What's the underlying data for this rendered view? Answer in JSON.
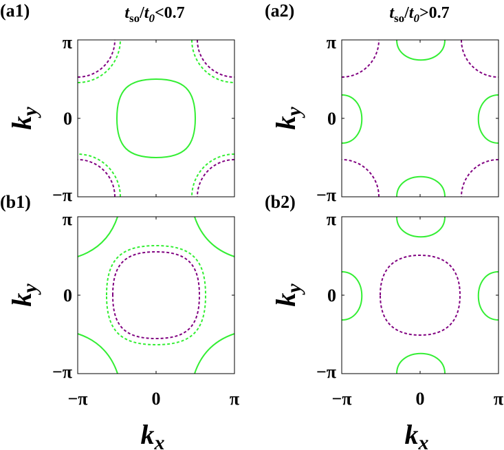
{
  "panels": [
    {
      "label": "(a1)"
    },
    {
      "label": "(a2)"
    },
    {
      "label": "(b1)"
    },
    {
      "label": "(b2)"
    }
  ],
  "columns": [
    [
      "t",
      "so",
      "/",
      "t",
      "0",
      "<0.7"
    ],
    [
      "t",
      "so",
      "/",
      "t",
      "0",
      ">0.7"
    ]
  ],
  "ticks": [
    "−π",
    "0",
    "π"
  ],
  "x_label": [
    "k",
    "x"
  ],
  "y_label": [
    "k",
    "y"
  ]
}
